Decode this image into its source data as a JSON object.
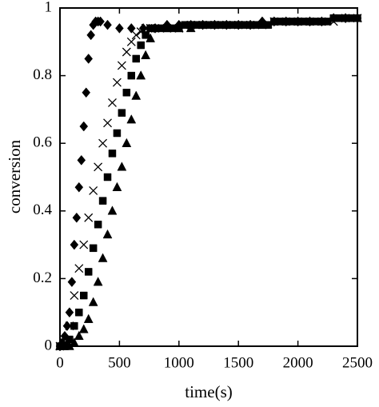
{
  "chart_data": {
    "type": "scatter",
    "xlabel": "time(s)",
    "ylabel": "conversion",
    "xlim": [
      0,
      2500
    ],
    "ylim": [
      0,
      1
    ],
    "xticks": [
      0,
      500,
      1000,
      1500,
      2000,
      2500
    ],
    "yticks": [
      0,
      0.2,
      0.4,
      0.6,
      0.8,
      1
    ],
    "grid": false,
    "series": [
      {
        "marker": "diamond",
        "color": "#000000",
        "x": [
          0,
          20,
          40,
          60,
          80,
          100,
          120,
          140,
          160,
          180,
          200,
          220,
          240,
          260,
          280,
          300,
          320,
          340,
          400,
          500,
          600,
          700,
          800,
          900,
          1000,
          1100,
          1200,
          1300,
          1400,
          1500,
          1600,
          1700,
          1800,
          1900,
          2000,
          2100,
          2200,
          2300,
          2400,
          2500
        ],
        "values": [
          0,
          0.01,
          0.03,
          0.06,
          0.1,
          0.19,
          0.3,
          0.38,
          0.47,
          0.55,
          0.65,
          0.75,
          0.85,
          0.92,
          0.95,
          0.96,
          0.96,
          0.96,
          0.95,
          0.94,
          0.94,
          0.94,
          0.94,
          0.95,
          0.95,
          0.95,
          0.95,
          0.95,
          0.95,
          0.95,
          0.95,
          0.96,
          0.96,
          0.96,
          0.96,
          0.96,
          0.96,
          0.97,
          0.97,
          0.97
        ]
      },
      {
        "marker": "cross",
        "color": "#000000",
        "x": [
          0,
          40,
          80,
          120,
          160,
          200,
          240,
          280,
          320,
          360,
          400,
          440,
          480,
          520,
          560,
          600,
          640,
          680,
          720,
          760,
          800,
          900,
          1000,
          1100,
          1200,
          1300,
          1400,
          1500,
          1600,
          1700,
          1800,
          1900,
          2000,
          2100,
          2200,
          2300,
          2400,
          2500
        ],
        "values": [
          0,
          0.01,
          0.06,
          0.15,
          0.23,
          0.3,
          0.38,
          0.46,
          0.53,
          0.6,
          0.66,
          0.72,
          0.78,
          0.83,
          0.87,
          0.9,
          0.92,
          0.93,
          0.94,
          0.94,
          0.94,
          0.94,
          0.94,
          0.95,
          0.95,
          0.95,
          0.95,
          0.95,
          0.95,
          0.95,
          0.96,
          0.96,
          0.96,
          0.96,
          0.96,
          0.96,
          0.97,
          0.97
        ]
      },
      {
        "marker": "square",
        "color": "#000000",
        "x": [
          0,
          40,
          80,
          120,
          160,
          200,
          240,
          280,
          320,
          360,
          400,
          440,
          480,
          520,
          560,
          600,
          640,
          680,
          720,
          760,
          800,
          850,
          900,
          950,
          1000,
          1050,
          1100,
          1150,
          1200,
          1250,
          1300,
          1350,
          1400,
          1450,
          1500,
          1550,
          1600,
          1650,
          1700,
          1750,
          1800,
          1850,
          1900,
          1950,
          2000,
          2050,
          2100,
          2150,
          2200,
          2250,
          2300,
          2350,
          2400,
          2450,
          2500
        ],
        "values": [
          0,
          0,
          0.02,
          0.06,
          0.1,
          0.15,
          0.22,
          0.29,
          0.36,
          0.43,
          0.5,
          0.57,
          0.63,
          0.69,
          0.75,
          0.8,
          0.85,
          0.89,
          0.92,
          0.94,
          0.94,
          0.94,
          0.94,
          0.94,
          0.94,
          0.95,
          0.95,
          0.95,
          0.95,
          0.95,
          0.95,
          0.95,
          0.95,
          0.95,
          0.95,
          0.95,
          0.95,
          0.95,
          0.95,
          0.95,
          0.96,
          0.96,
          0.96,
          0.96,
          0.96,
          0.96,
          0.96,
          0.96,
          0.96,
          0.96,
          0.97,
          0.97,
          0.97,
          0.97,
          0.97
        ]
      },
      {
        "marker": "triangle",
        "color": "#000000",
        "x": [
          0,
          40,
          80,
          120,
          160,
          200,
          240,
          280,
          320,
          360,
          400,
          440,
          480,
          520,
          560,
          600,
          640,
          680,
          720,
          760,
          800,
          900,
          1000,
          1100,
          1200,
          1300,
          1400,
          1500,
          1600,
          1700,
          1800,
          1900,
          2000,
          2100,
          2200,
          2300,
          2400,
          2500
        ],
        "values": [
          0,
          0,
          0,
          0.01,
          0.03,
          0.05,
          0.08,
          0.13,
          0.19,
          0.26,
          0.33,
          0.4,
          0.47,
          0.53,
          0.6,
          0.67,
          0.74,
          0.8,
          0.86,
          0.91,
          0.94,
          0.94,
          0.94,
          0.94,
          0.95,
          0.95,
          0.95,
          0.95,
          0.95,
          0.95,
          0.96,
          0.96,
          0.96,
          0.96,
          0.96,
          0.97,
          0.97,
          0.97
        ]
      }
    ]
  }
}
